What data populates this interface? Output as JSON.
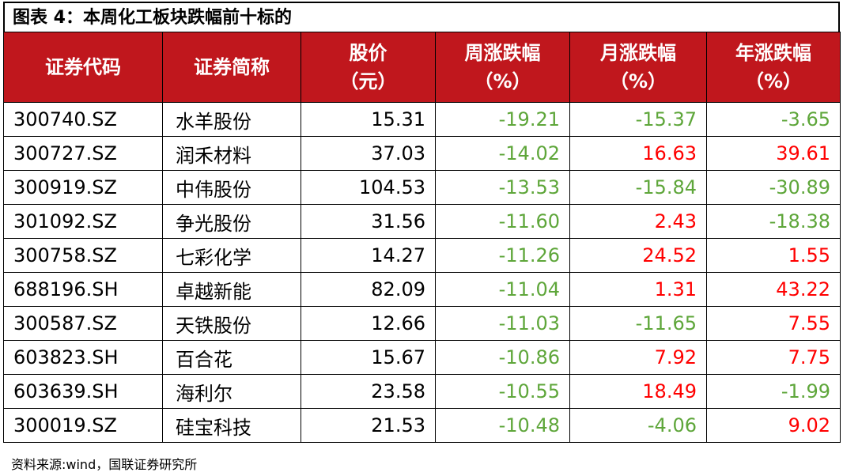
{
  "title": "图表 4：本周化工板块跌幅前十标的",
  "table": {
    "header": [
      [
        "证券代码"
      ],
      [
        "证券简称"
      ],
      [
        "股价",
        "（元）"
      ],
      [
        "周涨跌幅",
        "（%）"
      ],
      [
        "月涨跌幅",
        "（%）"
      ],
      [
        "年涨跌幅",
        "（%）"
      ]
    ],
    "rows": [
      [
        "300740.SZ",
        "水羊股份",
        "15.31",
        "-19.21",
        "-15.37",
        "-3.65"
      ],
      [
        "300727.SZ",
        "润禾材料",
        "37.03",
        "-14.02",
        "16.63",
        "39.61"
      ],
      [
        "300919.SZ",
        "中伟股份",
        "104.53",
        "-13.53",
        "-15.84",
        "-30.89"
      ],
      [
        "301092.SZ",
        "争光股份",
        "31.56",
        "-11.60",
        "2.43",
        "-18.38"
      ],
      [
        "300758.SZ",
        "七彩化学",
        "14.27",
        "-11.26",
        "24.52",
        "1.55"
      ],
      [
        "688196.SH",
        "卓越新能",
        "82.09",
        "-11.04",
        "1.31",
        "43.22"
      ],
      [
        "300587.SZ",
        "天铁股份",
        "12.66",
        "-11.03",
        "-11.65",
        "7.55"
      ],
      [
        "603823.SH",
        "百合花",
        "15.67",
        "-10.86",
        "7.92",
        "7.75"
      ],
      [
        "603639.SH",
        "海利尔",
        "23.58",
        "-10.55",
        "18.49",
        "-1.99"
      ],
      [
        "300019.SZ",
        "硅宝科技",
        "21.53",
        "-10.48",
        "-4.06",
        "9.02"
      ]
    ]
  },
  "source": "资料来源:wind，国联证券研究所"
}
